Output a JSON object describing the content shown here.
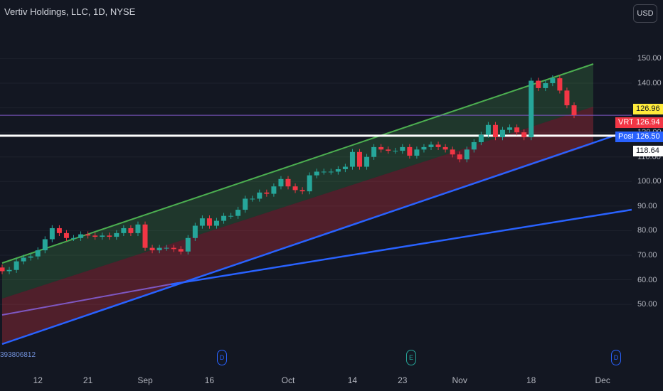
{
  "header": {
    "title": "Vertiv Holdings, LLC, 1D, NYSE",
    "currency_button": "USD"
  },
  "axis": {
    "y_ticks": [
      "150.00",
      "140.00",
      "130.00",
      "120.00",
      "110.00",
      "100.00",
      "90.00",
      "80.00",
      "70.00",
      "60.00",
      "50.00"
    ],
    "x_ticks": [
      "12",
      "21",
      "Sep",
      "16",
      "Oct",
      "14",
      "23",
      "Nov",
      "18",
      "Dec"
    ]
  },
  "price_tags": {
    "last": {
      "value": "126.96",
      "color": "#ffeb3b"
    },
    "vrt_label": "VRT",
    "vrt_value": "126.94",
    "post_label": "Post",
    "post_value": "126.50",
    "level": "118.64"
  },
  "events": {
    "d1": "D",
    "e": "E",
    "d2": "D"
  },
  "footer_note": "393806812",
  "colors": {
    "up": "#26a69a",
    "down": "#f23645",
    "channel_top": "#4caf50",
    "trend": "#2962ff",
    "ma": "#7e57c2"
  },
  "chart_data": {
    "type": "candlestick",
    "symbol": "VRT",
    "x": [
      "Aug 5",
      "Aug 6",
      "Aug 7",
      "Aug 8",
      "Aug 9",
      "Aug 12",
      "Aug 13",
      "Aug 14",
      "Aug 15",
      "Aug 16",
      "Aug 19",
      "Aug 20",
      "Aug 21",
      "Aug 22",
      "Aug 23",
      "Aug 26",
      "Aug 27",
      "Aug 28",
      "Aug 29",
      "Aug 30",
      "Sep 3",
      "Sep 4",
      "Sep 5",
      "Sep 6",
      "Sep 9",
      "Sep 10",
      "Sep 11",
      "Sep 12",
      "Sep 13",
      "Sep 16",
      "Sep 17",
      "Sep 18",
      "Sep 19",
      "Sep 20",
      "Sep 23",
      "Sep 24",
      "Sep 25",
      "Sep 26",
      "Sep 27",
      "Sep 30",
      "Oct 1",
      "Oct 2",
      "Oct 3",
      "Oct 4",
      "Oct 7",
      "Oct 8",
      "Oct 9",
      "Oct 10",
      "Oct 11",
      "Oct 14",
      "Oct 15",
      "Oct 16",
      "Oct 17",
      "Oct 18",
      "Oct 21",
      "Oct 22",
      "Oct 23",
      "Oct 24",
      "Oct 25",
      "Oct 28",
      "Oct 29",
      "Oct 30",
      "Oct 31",
      "Nov 1",
      "Nov 4",
      "Nov 5",
      "Nov 6",
      "Nov 7",
      "Nov 8",
      "Nov 11",
      "Nov 12",
      "Nov 13",
      "Nov 14",
      "Nov 15",
      "Nov 18",
      "Nov 19",
      "Nov 20",
      "Nov 21",
      "Nov 22",
      "Nov 25",
      "Nov 26"
    ],
    "series": [
      {
        "open": [
          65,
          63.5,
          64,
          67.5,
          69,
          69.5,
          72,
          76.5,
          81,
          79,
          77,
          77,
          78.5,
          78,
          77.5,
          78,
          77.5,
          79,
          81,
          79,
          82.5,
          73,
          72,
          73,
          73,
          72.5,
          71.5,
          77,
          82,
          85,
          82,
          84,
          86,
          86,
          88.5,
          93,
          93,
          95.5,
          95,
          98,
          101,
          98,
          96.5,
          96,
          102.5,
          104,
          104,
          104,
          105,
          106,
          112,
          106,
          110,
          114,
          113,
          112.5,
          112.5,
          114,
          110.5,
          113,
          114,
          115,
          114,
          113,
          111,
          109,
          113,
          116,
          119,
          123,
          118,
          121,
          122,
          120,
          118,
          141,
          138,
          140,
          142,
          137,
          131
        ],
        "close": [
          63.5,
          64,
          67.5,
          69,
          69.5,
          72,
          76.5,
          81,
          79,
          77,
          77,
          78.5,
          78,
          77.5,
          78,
          77.5,
          79,
          81,
          79,
          82.5,
          73,
          72,
          73,
          73,
          72.5,
          71.5,
          77,
          82,
          85,
          82,
          84,
          86,
          86,
          88.5,
          93,
          93,
          95.5,
          95,
          98,
          101,
          98,
          96.5,
          96,
          102.5,
          104,
          104,
          104,
          105,
          106,
          112,
          106,
          110,
          114,
          113,
          112.5,
          112.5,
          114,
          110.5,
          113,
          114,
          115,
          114,
          113,
          111,
          109,
          113,
          116,
          119,
          123,
          118,
          121,
          122,
          120,
          118,
          141,
          138,
          140,
          142,
          137,
          131,
          127
        ]
      }
    ],
    "ylim": [
      47,
      157
    ],
    "overlays": [
      "linear regression channel",
      "trend lines",
      "moving average"
    ],
    "last_price": 126.96,
    "post_price": 126.5,
    "horizontal_level": 118.64
  }
}
